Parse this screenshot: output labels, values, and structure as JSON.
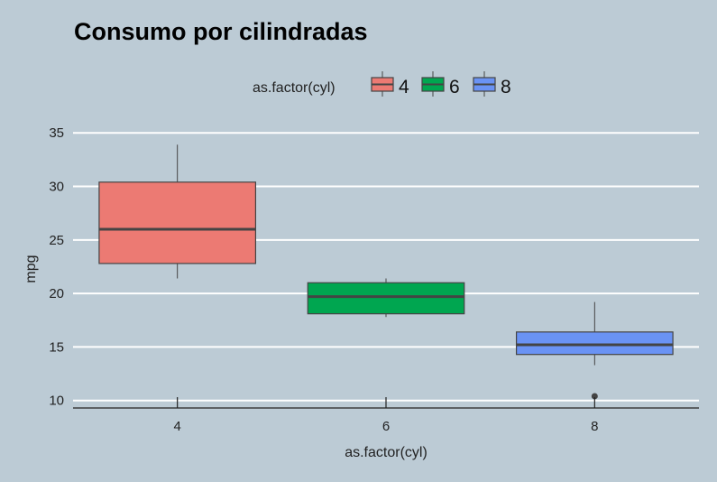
{
  "chart_data": {
    "type": "box",
    "title": "Consumo por cilindradas",
    "xlabel": "as.factor(cyl)",
    "ylabel": "mpg",
    "categories": [
      "4",
      "6",
      "8"
    ],
    "ylim": [
      9.3,
      36.2
    ],
    "yticks": [
      10,
      15,
      20,
      25,
      30,
      35
    ],
    "grid": "horizontal major",
    "legend": {
      "title": "as.factor(cyl)",
      "placement": "top",
      "entries": [
        "4",
        "6",
        "8"
      ]
    },
    "series": [
      {
        "category": "4",
        "min": 21.4,
        "q1": 22.8,
        "median": 26.0,
        "q3": 30.4,
        "max": 33.9,
        "outliers": [],
        "color": "#ec7a73"
      },
      {
        "category": "6",
        "min": 17.8,
        "q1": 18.1,
        "median": 19.7,
        "q3": 21.0,
        "max": 21.4,
        "outliers": [],
        "color": "#00a650"
      },
      {
        "category": "8",
        "min": 13.3,
        "q1": 14.3,
        "median": 15.2,
        "q3": 16.4,
        "max": 19.2,
        "outliers": [
          10.4
        ],
        "color": "#6a93f4"
      }
    ],
    "colors": {
      "background": "#bccbd5",
      "grid": "#ffffff",
      "box_outline": "#444444",
      "axis": "#222222"
    }
  }
}
